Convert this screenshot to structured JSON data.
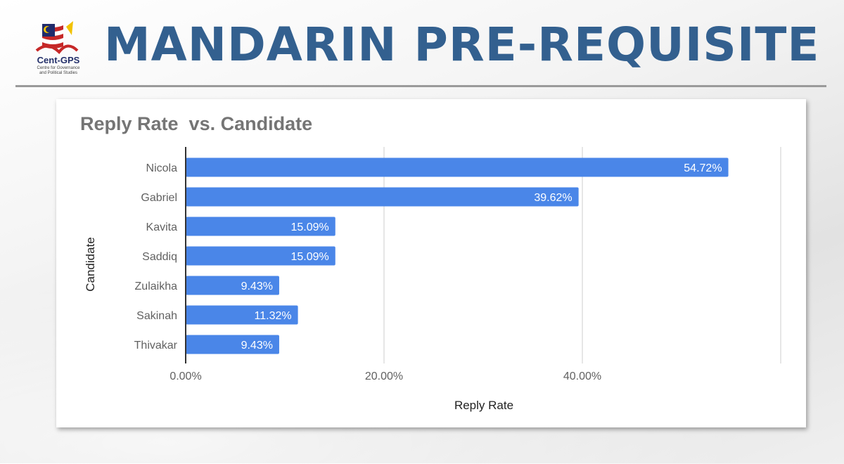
{
  "header": {
    "title": "MANDARIN PRE-REQUISITE",
    "logo": {
      "name": "Cent-GPS",
      "subtitle_lines": [
        "Centre for Governance",
        "and Political Studies"
      ]
    }
  },
  "colors": {
    "title": "#33608f",
    "bar": "#4a86e8",
    "bar_label": "#ffffff",
    "axis_text": "#616161",
    "grid": "#cccccc"
  },
  "chart_data": {
    "type": "bar",
    "orientation": "horizontal",
    "title": "Reply Rate  vs. Candidate",
    "xlabel": "Reply Rate",
    "ylabel": "Candidate",
    "categories": [
      "Nicola",
      "Gabriel",
      "Kavita",
      "Saddiq",
      "Zulaikha",
      "Sakinah",
      "Thivakar"
    ],
    "values": [
      54.72,
      39.62,
      15.09,
      15.09,
      9.43,
      11.32,
      9.43
    ],
    "data_labels": [
      "54.72%",
      "39.62%",
      "15.09%",
      "15.09%",
      "9.43%",
      "11.32%",
      "9.43%"
    ],
    "x_ticks": [
      0,
      20,
      40
    ],
    "x_tick_labels": [
      "0.00%",
      "20.00%",
      "40.00%"
    ],
    "xlim": [
      0,
      60
    ],
    "grid": true,
    "legend": "none"
  }
}
